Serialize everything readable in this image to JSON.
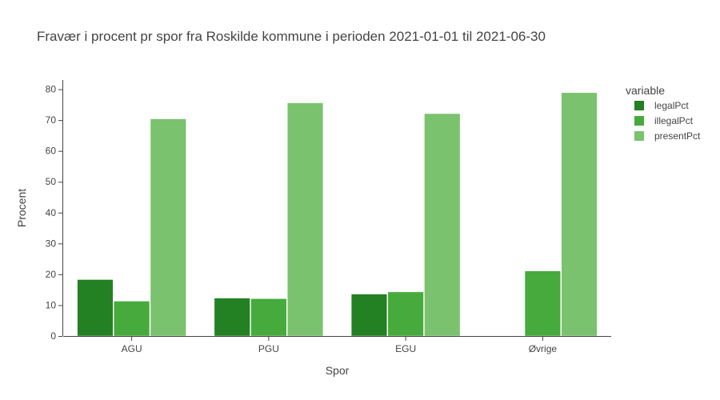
{
  "chart_data": {
    "type": "bar",
    "title": "Fravær i procent pr spor fra Roskilde kommune i perioden 2021-01-01 til 2021-06-30",
    "xlabel": "Spor",
    "ylabel": "Procent",
    "categories": [
      "AGU",
      "PGU",
      "EGU",
      "Øvrige"
    ],
    "ylim": [
      0,
      83
    ],
    "yticks": [
      0,
      10,
      20,
      30,
      40,
      50,
      60,
      70,
      80
    ],
    "grid": false,
    "legend_title": "variable",
    "legend_position": "top-right",
    "series": [
      {
        "name": "legalPct",
        "color": "#238023",
        "values": [
          18.3,
          12.3,
          13.6,
          null
        ]
      },
      {
        "name": "illegalPct",
        "color": "#46AA3C",
        "values": [
          11.3,
          12.1,
          14.3,
          21.1
        ]
      },
      {
        "name": "presentPct",
        "color": "#7BC26E",
        "values": [
          70.4,
          75.6,
          72.1,
          78.9
        ]
      }
    ]
  }
}
